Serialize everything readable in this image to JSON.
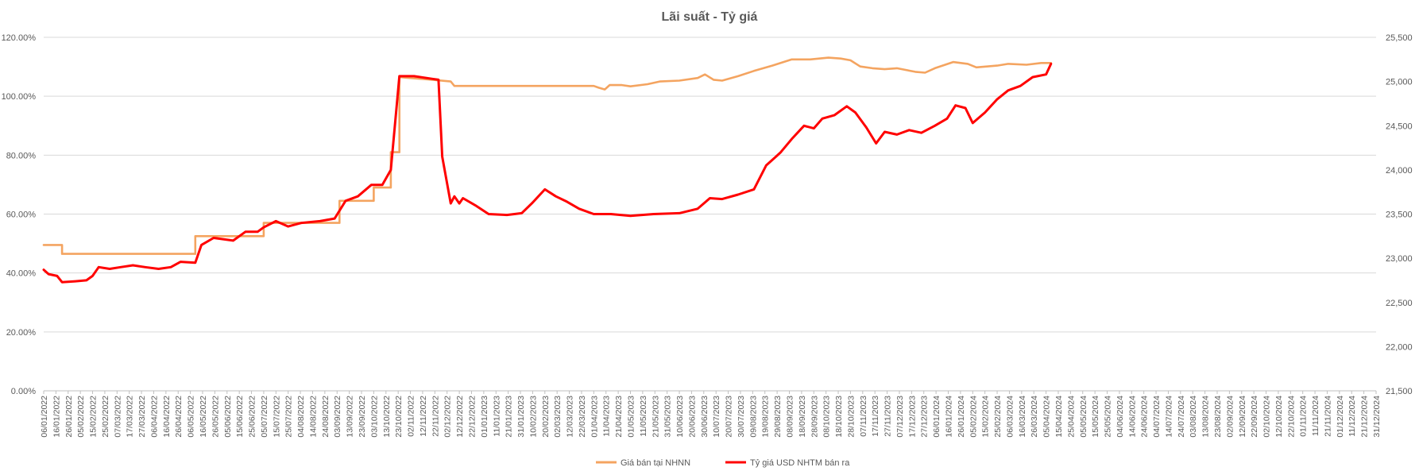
{
  "chart_data": {
    "type": "line",
    "title": "Lãi suất - Tỷ giá",
    "y_left": {
      "min": 0,
      "max": 1.2,
      "step": 0.2,
      "tick_labels": [
        "0.00%",
        "20.00%",
        "40.00%",
        "60.00%",
        "80.00%",
        "100.00%",
        "120.00%"
      ]
    },
    "y_right": {
      "min": 21500,
      "max": 25500,
      "step": 500,
      "tick_labels": [
        "21,500",
        "22,000",
        "22,500",
        "23,000",
        "23,500",
        "24,000",
        "24,500",
        "25,000",
        "25,500"
      ]
    },
    "x_axis": {
      "start": "2022-01-06",
      "end": "2024-12-31",
      "tick_labels": [
        "06/01/2022",
        "16/01/2022",
        "26/01/2022",
        "05/02/2022",
        "15/02/2022",
        "25/02/2022",
        "07/03/2022",
        "17/03/2022",
        "27/03/2022",
        "06/04/2022",
        "16/04/2022",
        "26/04/2022",
        "06/05/2022",
        "16/05/2022",
        "26/05/2022",
        "05/06/2022",
        "15/06/2022",
        "25/06/2022",
        "05/07/2022",
        "15/07/2022",
        "25/07/2022",
        "04/08/2022",
        "14/08/2022",
        "24/08/2022",
        "03/09/2022",
        "13/09/2022",
        "23/09/2022",
        "03/10/2022",
        "13/10/2022",
        "23/10/2022",
        "02/11/2022",
        "12/11/2022",
        "22/11/2022",
        "02/12/2022",
        "12/12/2022",
        "22/12/2022",
        "01/01/2023",
        "11/01/2023",
        "21/01/2023",
        "31/01/2023",
        "10/02/2023",
        "20/02/2023",
        "02/03/2023",
        "12/03/2023",
        "22/03/2023",
        "01/04/2023",
        "11/04/2023",
        "21/04/2023",
        "01/05/2023",
        "11/05/2023",
        "21/05/2023",
        "31/05/2023",
        "10/06/2023",
        "20/06/2023",
        "30/06/2023",
        "10/07/2023",
        "20/07/2023",
        "30/07/2023",
        "09/08/2023",
        "19/08/2023",
        "29/08/2023",
        "08/09/2023",
        "18/09/2023",
        "28/09/2023",
        "08/10/2023",
        "18/10/2023",
        "28/10/2023",
        "07/11/2023",
        "17/11/2023",
        "27/11/2023",
        "07/12/2023",
        "17/12/2023",
        "27/12/2023",
        "06/01/2024",
        "16/01/2024",
        "26/01/2024",
        "05/02/2024",
        "15/02/2024",
        "25/02/2024",
        "06/03/2024",
        "16/03/2024",
        "26/03/2024",
        "05/04/2024",
        "15/04/2024",
        "25/04/2024",
        "05/05/2024",
        "15/05/2024",
        "25/05/2024",
        "04/06/2024",
        "14/06/2024",
        "24/06/2024",
        "04/07/2024",
        "14/07/2024",
        "24/07/2024",
        "03/08/2024",
        "13/08/2024",
        "23/08/2024",
        "02/09/2024",
        "12/09/2024",
        "22/09/2024",
        "02/10/2024",
        "12/10/2024",
        "22/10/2024",
        "01/11/2024",
        "11/11/2024",
        "21/11/2024",
        "01/12/2024",
        "11/12/2024",
        "21/12/2024",
        "31/12/2024"
      ]
    },
    "grid": true,
    "legend_position": "bottom",
    "series": [
      {
        "name": "Giá bán tại NHNN",
        "axis": "right",
        "color": "#F4A460",
        "points": [
          [
            "2022-01-06",
            23150
          ],
          [
            "2022-01-21",
            23150
          ],
          [
            "2022-01-21",
            23050
          ],
          [
            "2022-03-01",
            23050
          ],
          [
            "2022-05-10",
            23050
          ],
          [
            "2022-05-10",
            23250
          ],
          [
            "2022-07-05",
            23250
          ],
          [
            "2022-07-05",
            23400
          ],
          [
            "2022-09-05",
            23400
          ],
          [
            "2022-09-05",
            23650
          ],
          [
            "2022-10-03",
            23650
          ],
          [
            "2022-10-03",
            23800
          ],
          [
            "2022-10-17",
            23800
          ],
          [
            "2022-10-17",
            24200
          ],
          [
            "2022-10-24",
            24200
          ],
          [
            "2022-10-24",
            25050
          ],
          [
            "2022-11-20",
            25020
          ],
          [
            "2022-12-05",
            25000
          ],
          [
            "2022-12-08",
            24950
          ],
          [
            "2023-04-01",
            24950
          ],
          [
            "2023-04-05",
            24930
          ],
          [
            "2023-04-10",
            24910
          ],
          [
            "2023-04-14",
            24960
          ],
          [
            "2023-04-24",
            24960
          ],
          [
            "2023-05-01",
            24945
          ],
          [
            "2023-05-15",
            24970
          ],
          [
            "2023-05-25",
            25000
          ],
          [
            "2023-06-10",
            25010
          ],
          [
            "2023-06-25",
            25040
          ],
          [
            "2023-07-01",
            25080
          ],
          [
            "2023-07-08",
            25020
          ],
          [
            "2023-07-15",
            25010
          ],
          [
            "2023-07-28",
            25060
          ],
          [
            "2023-08-10",
            25120
          ],
          [
            "2023-08-25",
            25180
          ],
          [
            "2023-09-10",
            25250
          ],
          [
            "2023-09-25",
            25250
          ],
          [
            "2023-10-10",
            25270
          ],
          [
            "2023-10-20",
            25260
          ],
          [
            "2023-10-28",
            25240
          ],
          [
            "2023-11-05",
            25170
          ],
          [
            "2023-11-15",
            25150
          ],
          [
            "2023-11-25",
            25140
          ],
          [
            "2023-12-05",
            25150
          ],
          [
            "2023-12-20",
            25110
          ],
          [
            "2023-12-28",
            25100
          ],
          [
            "2024-01-05",
            25150
          ],
          [
            "2024-01-20",
            25220
          ],
          [
            "2024-02-01",
            25200
          ],
          [
            "2024-02-08",
            25160
          ],
          [
            "2024-02-25",
            25180
          ],
          [
            "2024-03-05",
            25200
          ],
          [
            "2024-03-20",
            25190
          ],
          [
            "2024-04-01",
            25210
          ],
          [
            "2024-04-09",
            25210
          ]
        ]
      },
      {
        "name": "Tỷ giá USD NHTM bán ra",
        "axis": "right",
        "color": "#FF0000",
        "points": [
          [
            "2022-01-06",
            22870
          ],
          [
            "2022-01-10",
            22820
          ],
          [
            "2022-01-17",
            22800
          ],
          [
            "2022-01-21",
            22730
          ],
          [
            "2022-02-01",
            22740
          ],
          [
            "2022-02-10",
            22750
          ],
          [
            "2022-02-15",
            22800
          ],
          [
            "2022-02-20",
            22900
          ],
          [
            "2022-03-01",
            22880
          ],
          [
            "2022-03-10",
            22900
          ],
          [
            "2022-03-20",
            22920
          ],
          [
            "2022-03-30",
            22900
          ],
          [
            "2022-04-10",
            22880
          ],
          [
            "2022-04-20",
            22900
          ],
          [
            "2022-04-28",
            22960
          ],
          [
            "2022-05-10",
            22950
          ],
          [
            "2022-05-15",
            23150
          ],
          [
            "2022-05-25",
            23230
          ],
          [
            "2022-06-10",
            23200
          ],
          [
            "2022-06-20",
            23300
          ],
          [
            "2022-06-30",
            23300
          ],
          [
            "2022-07-05",
            23350
          ],
          [
            "2022-07-15",
            23420
          ],
          [
            "2022-07-25",
            23360
          ],
          [
            "2022-08-05",
            23400
          ],
          [
            "2022-08-20",
            23420
          ],
          [
            "2022-09-01",
            23450
          ],
          [
            "2022-09-10",
            23650
          ],
          [
            "2022-09-20",
            23700
          ],
          [
            "2022-10-01",
            23830
          ],
          [
            "2022-10-10",
            23830
          ],
          [
            "2022-10-17",
            24000
          ],
          [
            "2022-10-24",
            25060
          ],
          [
            "2022-11-05",
            25060
          ],
          [
            "2022-11-20",
            25030
          ],
          [
            "2022-11-25",
            25020
          ],
          [
            "2022-11-28",
            24150
          ],
          [
            "2022-12-05",
            23620
          ],
          [
            "2022-12-08",
            23700
          ],
          [
            "2022-12-12",
            23620
          ],
          [
            "2022-12-15",
            23680
          ],
          [
            "2022-12-25",
            23600
          ],
          [
            "2023-01-05",
            23500
          ],
          [
            "2023-01-20",
            23490
          ],
          [
            "2023-02-01",
            23510
          ],
          [
            "2023-02-10",
            23630
          ],
          [
            "2023-02-20",
            23780
          ],
          [
            "2023-03-01",
            23700
          ],
          [
            "2023-03-10",
            23640
          ],
          [
            "2023-03-20",
            23560
          ],
          [
            "2023-04-01",
            23500
          ],
          [
            "2023-04-15",
            23500
          ],
          [
            "2023-05-01",
            23480
          ],
          [
            "2023-05-20",
            23500
          ],
          [
            "2023-06-10",
            23510
          ],
          [
            "2023-06-25",
            23560
          ],
          [
            "2023-07-05",
            23680
          ],
          [
            "2023-07-15",
            23670
          ],
          [
            "2023-07-28",
            23720
          ],
          [
            "2023-08-10",
            23780
          ],
          [
            "2023-08-20",
            24050
          ],
          [
            "2023-08-28",
            24150
          ],
          [
            "2023-09-01",
            24200
          ],
          [
            "2023-09-10",
            24350
          ],
          [
            "2023-09-20",
            24500
          ],
          [
            "2023-09-28",
            24470
          ],
          [
            "2023-10-05",
            24580
          ],
          [
            "2023-10-15",
            24620
          ],
          [
            "2023-10-25",
            24720
          ],
          [
            "2023-11-01",
            24650
          ],
          [
            "2023-11-10",
            24480
          ],
          [
            "2023-11-18",
            24300
          ],
          [
            "2023-11-25",
            24430
          ],
          [
            "2023-12-05",
            24400
          ],
          [
            "2023-12-15",
            24450
          ],
          [
            "2023-12-25",
            24420
          ],
          [
            "2024-01-05",
            24500
          ],
          [
            "2024-01-15",
            24580
          ],
          [
            "2024-01-22",
            24730
          ],
          [
            "2024-01-30",
            24700
          ],
          [
            "2024-02-05",
            24530
          ],
          [
            "2024-02-15",
            24650
          ],
          [
            "2024-02-25",
            24800
          ],
          [
            "2024-03-05",
            24900
          ],
          [
            "2024-03-15",
            24950
          ],
          [
            "2024-03-25",
            25050
          ],
          [
            "2024-04-05",
            25080
          ],
          [
            "2024-04-09",
            25200
          ]
        ]
      }
    ]
  }
}
